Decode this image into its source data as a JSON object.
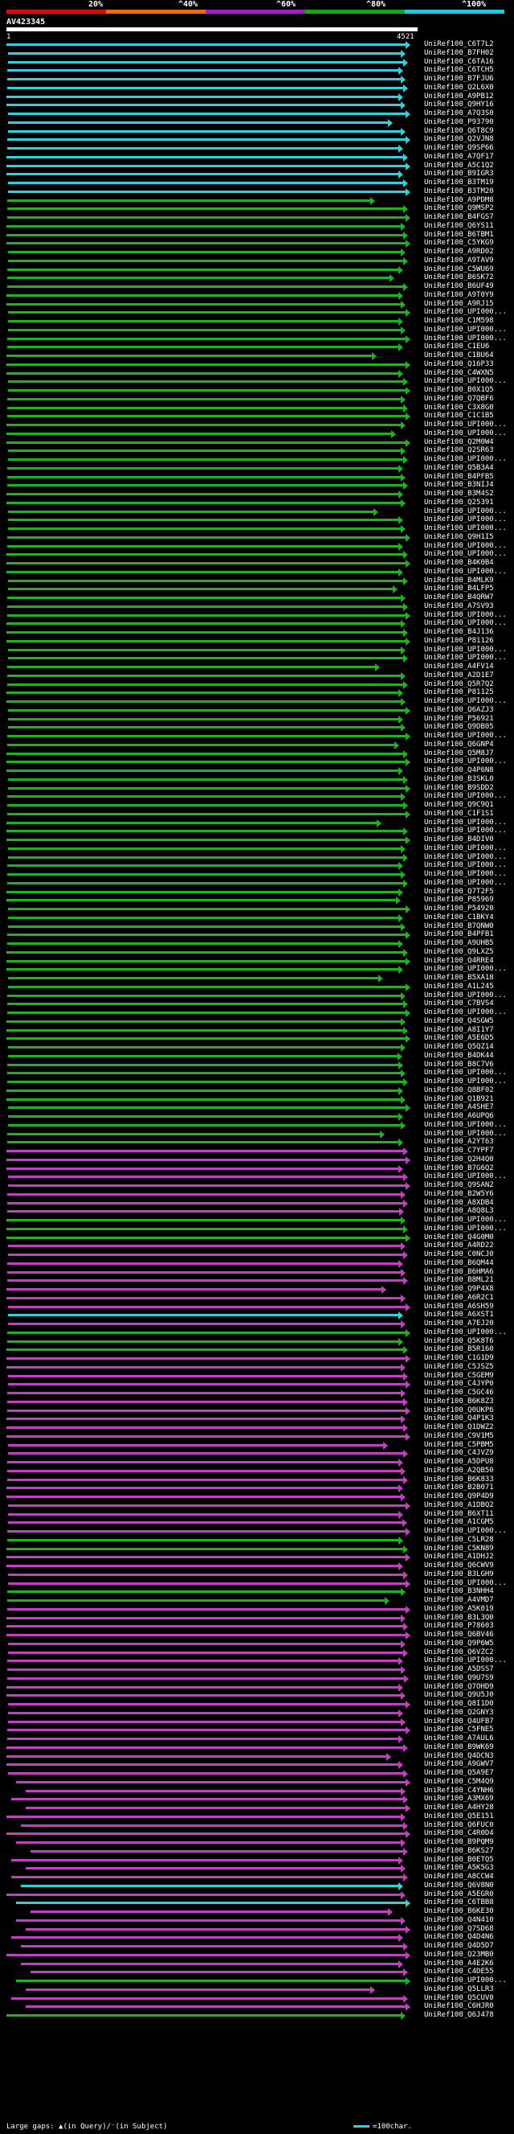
{
  "header": {
    "identity_labels": [
      "20%",
      "^40%",
      "^60%",
      "^80%",
      "^100%"
    ],
    "identity_colors": [
      "#d01010",
      "#e07010",
      "#a020c0",
      "#20a020",
      "#20c8d8"
    ],
    "query_name": "AV423345",
    "coord_start": "1",
    "coord_end": "4521"
  },
  "colors": {
    "cyan": "#2fd0e0",
    "green": "#20b020",
    "magenta": "#c040c0"
  },
  "hits": [
    {
      "label": "UniRef100_C6T7L2",
      "c": "cyan"
    },
    {
      "label": "UniRef100_B7FH02",
      "c": "cyan"
    },
    {
      "label": "UniRef100_C6TA16",
      "c": "cyan"
    },
    {
      "label": "UniRef100_C6TCH5",
      "c": "cyan"
    },
    {
      "label": "UniRef100_B7FJU6",
      "c": "cyan"
    },
    {
      "label": "UniRef100_Q2L6X0",
      "c": "cyan"
    },
    {
      "label": "UniRef100_A9PB12",
      "c": "cyan"
    },
    {
      "label": "UniRef100_Q9HY16",
      "c": "cyan"
    },
    {
      "label": "UniRef100_A7Q3S0",
      "c": "cyan"
    },
    {
      "label": "UniRef100_P93790",
      "c": "cyan"
    },
    {
      "label": "UniRef100_Q6T8C9",
      "c": "cyan"
    },
    {
      "label": "UniRef100_Q2VJN8",
      "c": "cyan"
    },
    {
      "label": "UniRef100_Q9SP66",
      "c": "cyan"
    },
    {
      "label": "UniRef100_A7QF17",
      "c": "cyan"
    },
    {
      "label": "UniRef100_A5C1Q2",
      "c": "cyan"
    },
    {
      "label": "UniRef100_B9IGR3",
      "c": "cyan"
    },
    {
      "label": "UniRef100_B3TM19",
      "c": "cyan"
    },
    {
      "label": "UniRef100_B3TM20",
      "c": "cyan"
    },
    {
      "label": "UniRef100_A9PDM8",
      "c": "green"
    },
    {
      "label": "UniRef100_Q9MSP2",
      "c": "green"
    },
    {
      "label": "UniRef100_B4FGS7",
      "c": "green"
    },
    {
      "label": "UniRef100_Q6YS11",
      "c": "green"
    },
    {
      "label": "UniRef100_B6TBM1",
      "c": "green"
    },
    {
      "label": "UniRef100_C5YKG9",
      "c": "green"
    },
    {
      "label": "UniRef100_A9RD02",
      "c": "green"
    },
    {
      "label": "UniRef100_A9TAV9",
      "c": "green"
    },
    {
      "label": "UniRef100_C5WU69",
      "c": "green"
    },
    {
      "label": "UniRef100_B6SK72",
      "c": "green"
    },
    {
      "label": "UniRef100_B6UF49",
      "c": "green"
    },
    {
      "label": "UniRef100_A9T0Y9",
      "c": "green"
    },
    {
      "label": "UniRef100_A9RJ15",
      "c": "green"
    },
    {
      "label": "UniRef100_UPI000...",
      "c": "green"
    },
    {
      "label": "UniRef100_C1M598",
      "c": "green"
    },
    {
      "label": "UniRef100_UPI000...",
      "c": "green"
    },
    {
      "label": "UniRef100_UPI000...",
      "c": "green"
    },
    {
      "label": "UniRef100_C1EU6",
      "c": "green"
    },
    {
      "label": "UniRef100_C1BU64",
      "c": "green"
    },
    {
      "label": "UniRef100_Q16P33",
      "c": "green"
    },
    {
      "label": "UniRef100_C4WXN5",
      "c": "green"
    },
    {
      "label": "UniRef100_UPI000...",
      "c": "green"
    },
    {
      "label": "UniRef100_B0X1Q5",
      "c": "green"
    },
    {
      "label": "UniRef100_Q7QBF6",
      "c": "green"
    },
    {
      "label": "UniRef100_C3X8G0",
      "c": "green"
    },
    {
      "label": "UniRef100_C1C1B5",
      "c": "green"
    },
    {
      "label": "UniRef100_UPI000...",
      "c": "green"
    },
    {
      "label": "UniRef100_UPI000...",
      "c": "green"
    },
    {
      "label": "UniRef100_Q2M0W4",
      "c": "green"
    },
    {
      "label": "UniRef100_Q2SR63",
      "c": "green"
    },
    {
      "label": "UniRef100_UPI000...",
      "c": "green"
    },
    {
      "label": "UniRef100_Q5B3A4",
      "c": "green"
    },
    {
      "label": "UniRef100_B4PFB5",
      "c": "green"
    },
    {
      "label": "UniRef100_B3NIJ4",
      "c": "green"
    },
    {
      "label": "UniRef100_B3M4S2",
      "c": "green"
    },
    {
      "label": "UniRef100_Q25391",
      "c": "green"
    },
    {
      "label": "UniRef100_UPI000...",
      "c": "green"
    },
    {
      "label": "UniRef100_UPI000...",
      "c": "green"
    },
    {
      "label": "UniRef100_UPI000...",
      "c": "green"
    },
    {
      "label": "UniRef100_Q9H1I5",
      "c": "green"
    },
    {
      "label": "UniRef100_UPI000...",
      "c": "green"
    },
    {
      "label": "UniRef100_UPI000...",
      "c": "green"
    },
    {
      "label": "UniRef100_B4K0B4",
      "c": "green"
    },
    {
      "label": "UniRef100_UPI000...",
      "c": "green"
    },
    {
      "label": "UniRef100_B4MLK9",
      "c": "green"
    },
    {
      "label": "UniRef100_B4LFP5",
      "c": "green"
    },
    {
      "label": "UniRef100_B4QRW7",
      "c": "green"
    },
    {
      "label": "UniRef100_A7SV93",
      "c": "green"
    },
    {
      "label": "UniRef100_UPI000...",
      "c": "green"
    },
    {
      "label": "UniRef100_UPI000...",
      "c": "green"
    },
    {
      "label": "UniRef100_B4J136",
      "c": "green"
    },
    {
      "label": "UniRef100_P81126",
      "c": "green"
    },
    {
      "label": "UniRef100_UPI000...",
      "c": "green"
    },
    {
      "label": "UniRef100_UPI000...",
      "c": "green"
    },
    {
      "label": "UniRef100_A4FV14",
      "c": "green"
    },
    {
      "label": "UniRef100_A2D1E7",
      "c": "green"
    },
    {
      "label": "UniRef100_Q5R7Q2",
      "c": "green"
    },
    {
      "label": "UniRef100_P81125",
      "c": "green"
    },
    {
      "label": "UniRef100_UPI000...",
      "c": "green"
    },
    {
      "label": "UniRef100_Q6AZJ3",
      "c": "green"
    },
    {
      "label": "UniRef100_P56921",
      "c": "green"
    },
    {
      "label": "UniRef100_Q9DB05",
      "c": "green"
    },
    {
      "label": "UniRef100_UPI000...",
      "c": "green"
    },
    {
      "label": "UniRef100_Q6GNP4",
      "c": "green"
    },
    {
      "label": "UniRef100_Q5M8J7",
      "c": "green"
    },
    {
      "label": "UniRef100_UPI000...",
      "c": "green"
    },
    {
      "label": "UniRef100_Q4P6N8",
      "c": "green"
    },
    {
      "label": "UniRef100_B3SKL0",
      "c": "green"
    },
    {
      "label": "UniRef100_B9SDD2",
      "c": "green"
    },
    {
      "label": "UniRef100_UPI000...",
      "c": "green"
    },
    {
      "label": "UniRef100_Q9C9Q1",
      "c": "green"
    },
    {
      "label": "UniRef100_C1F1S1",
      "c": "green"
    },
    {
      "label": "UniRef100_UPI000...",
      "c": "green"
    },
    {
      "label": "UniRef100_UPI000...",
      "c": "green"
    },
    {
      "label": "UniRef100_B4DIV0",
      "c": "green"
    },
    {
      "label": "UniRef100_UPI000...",
      "c": "green"
    },
    {
      "label": "UniRef100_UPI000...",
      "c": "green"
    },
    {
      "label": "UniRef100_UPI000...",
      "c": "green"
    },
    {
      "label": "UniRef100_UPI000...",
      "c": "green"
    },
    {
      "label": "UniRef100_UPI000...",
      "c": "green"
    },
    {
      "label": "UniRef100_Q7T2F5",
      "c": "green"
    },
    {
      "label": "UniRef100_P85969",
      "c": "green"
    },
    {
      "label": "UniRef100_P54920",
      "c": "green"
    },
    {
      "label": "UniRef100_C1BKY4",
      "c": "green"
    },
    {
      "label": "UniRef100_B7QNW0",
      "c": "green"
    },
    {
      "label": "UniRef100_B4PFB1",
      "c": "green"
    },
    {
      "label": "UniRef100_A9UHB5",
      "c": "green"
    },
    {
      "label": "UniRef100_Q9LXZ5",
      "c": "green"
    },
    {
      "label": "UniRef100_Q4RRE4",
      "c": "green"
    },
    {
      "label": "UniRef100_UPI000...",
      "c": "green"
    },
    {
      "label": "UniRef100_B5XA18",
      "c": "green"
    },
    {
      "label": "UniRef100_A1L245",
      "c": "green"
    },
    {
      "label": "UniRef100_UPI000...",
      "c": "green"
    },
    {
      "label": "UniRef100_C7BVS4",
      "c": "green"
    },
    {
      "label": "UniRef100_UPI000...",
      "c": "green"
    },
    {
      "label": "UniRef100_Q4SGW5",
      "c": "green"
    },
    {
      "label": "UniRef100_A8I1Y7",
      "c": "green"
    },
    {
      "label": "UniRef100_A5E6D5",
      "c": "green"
    },
    {
      "label": "UniRef100_Q5QZ14",
      "c": "green"
    },
    {
      "label": "UniRef100_B4DK44",
      "c": "green"
    },
    {
      "label": "UniRef100_B8C7V6",
      "c": "green"
    },
    {
      "label": "UniRef100_UPI000...",
      "c": "green"
    },
    {
      "label": "UniRef100_UPI000...",
      "c": "green"
    },
    {
      "label": "UniRef100_Q8BF02",
      "c": "green"
    },
    {
      "label": "UniRef100_Q1B921",
      "c": "green"
    },
    {
      "label": "UniRef100_A4SHE7",
      "c": "green"
    },
    {
      "label": "UniRef100_A6UPQ6",
      "c": "green"
    },
    {
      "label": "UniRef100_UPI000...",
      "c": "green"
    },
    {
      "label": "UniRef100_UPI000...",
      "c": "green"
    },
    {
      "label": "UniRef100_A2YT63",
      "c": "green"
    },
    {
      "label": "UniRef100_C7YPF7",
      "c": "magenta"
    },
    {
      "label": "UniRef100_Q2H4Q0",
      "c": "magenta"
    },
    {
      "label": "UniRef100_B7G6Q2",
      "c": "magenta"
    },
    {
      "label": "UniRef100_UPI000...",
      "c": "magenta"
    },
    {
      "label": "UniRef100_Q9SAN2",
      "c": "magenta"
    },
    {
      "label": "UniRef100_B2W5Y6",
      "c": "magenta"
    },
    {
      "label": "UniRef100_A8XDB4",
      "c": "magenta"
    },
    {
      "label": "UniRef100_A8Q8L3",
      "c": "magenta"
    },
    {
      "label": "UniRef100_UPI000...",
      "c": "green"
    },
    {
      "label": "UniRef100_UPI000...",
      "c": "green"
    },
    {
      "label": "UniRef100_Q4G0M0",
      "c": "green"
    },
    {
      "label": "UniRef100_A4RD22",
      "c": "magenta"
    },
    {
      "label": "UniRef100_C0NCJ0",
      "c": "magenta"
    },
    {
      "label": "UniRef100_B6QM44",
      "c": "magenta"
    },
    {
      "label": "UniRef100_B6HMA6",
      "c": "magenta"
    },
    {
      "label": "UniRef100_B8ML21",
      "c": "magenta"
    },
    {
      "label": "UniRef100_Q9P4X8",
      "c": "magenta"
    },
    {
      "label": "UniRef100_A6R2C1",
      "c": "magenta"
    },
    {
      "label": "UniRef100_A6SH59",
      "c": "magenta"
    },
    {
      "label": "UniRef100_A6XST1",
      "c": "cyan"
    },
    {
      "label": "UniRef100_A7EJ20",
      "c": "magenta"
    },
    {
      "label": "UniRef100_UPI000...",
      "c": "green"
    },
    {
      "label": "UniRef100_Q5K8T6",
      "c": "green"
    },
    {
      "label": "UniRef100_B5R160",
      "c": "green"
    },
    {
      "label": "UniRef100_C1G1D9",
      "c": "magenta"
    },
    {
      "label": "UniRef100_C5JSZ5",
      "c": "magenta"
    },
    {
      "label": "UniRef100_C5GEM9",
      "c": "magenta"
    },
    {
      "label": "UniRef100_C4JYP0",
      "c": "magenta"
    },
    {
      "label": "UniRef100_C5GC46",
      "c": "magenta"
    },
    {
      "label": "UniRef100_B6K8Z3",
      "c": "magenta"
    },
    {
      "label": "UniRef100_Q0UKP6",
      "c": "magenta"
    },
    {
      "label": "UniRef100_Q4P1K3",
      "c": "magenta"
    },
    {
      "label": "UniRef100_Q1DWZ2",
      "c": "magenta"
    },
    {
      "label": "UniRef100_C9V1M5",
      "c": "magenta"
    },
    {
      "label": "UniRef100_C5PBM5",
      "c": "magenta"
    },
    {
      "label": "UniRef100_C4JVZ9",
      "c": "magenta"
    },
    {
      "label": "UniRef100_A5DPU8",
      "c": "magenta"
    },
    {
      "label": "UniRef100_A2QB50",
      "c": "magenta"
    },
    {
      "label": "UniRef100_B6K833",
      "c": "magenta"
    },
    {
      "label": "UniRef100_B2B071",
      "c": "magenta"
    },
    {
      "label": "UniRef100_Q9P4D9",
      "c": "magenta"
    },
    {
      "label": "UniRef100_A1DBQ2",
      "c": "magenta"
    },
    {
      "label": "UniRef100_B6XT11",
      "c": "magenta"
    },
    {
      "label": "UniRef100_A1CGM5",
      "c": "magenta"
    },
    {
      "label": "UniRef100_UPI000...",
      "c": "magenta"
    },
    {
      "label": "UniRef100_C5LR28",
      "c": "green"
    },
    {
      "label": "UniRef100_C5KN89",
      "c": "green"
    },
    {
      "label": "UniRef100_A1DHJ2",
      "c": "magenta"
    },
    {
      "label": "UniRef100_Q6CWV9",
      "c": "magenta"
    },
    {
      "label": "UniRef100_B3LGH9",
      "c": "magenta"
    },
    {
      "label": "UniRef100_UPI000...",
      "c": "magenta"
    },
    {
      "label": "UniRef100_B3NHH4",
      "c": "green"
    },
    {
      "label": "UniRef100_A4VMD7",
      "c": "green"
    },
    {
      "label": "UniRef100_A5K019",
      "c": "magenta"
    },
    {
      "label": "UniRef100_B3L3Q0",
      "c": "magenta"
    },
    {
      "label": "UniRef100_P78603",
      "c": "magenta"
    },
    {
      "label": "UniRef100_Q6BV46",
      "c": "magenta"
    },
    {
      "label": "UniRef100_Q9P6W5",
      "c": "magenta"
    },
    {
      "label": "UniRef100_Q6VZC2",
      "c": "magenta"
    },
    {
      "label": "UniRef100_UPI000...",
      "c": "magenta"
    },
    {
      "label": "UniRef100_A5DSS7",
      "c": "magenta"
    },
    {
      "label": "UniRef100_Q9U7S9",
      "c": "magenta"
    },
    {
      "label": "UniRef100_Q7OHD9",
      "c": "magenta"
    },
    {
      "label": "UniRef100_Q9U5J0",
      "c": "magenta"
    },
    {
      "label": "UniRef100_Q8I1D0",
      "c": "magenta"
    },
    {
      "label": "UniRef100_Q2GNY3",
      "c": "magenta"
    },
    {
      "label": "UniRef100_Q4UFB7",
      "c": "magenta"
    },
    {
      "label": "UniRef100_C5FNE5",
      "c": "magenta"
    },
    {
      "label": "UniRef100_A7AUL6",
      "c": "magenta"
    },
    {
      "label": "UniRef100_B9WK69",
      "c": "magenta"
    },
    {
      "label": "UniRef100_Q4DCN3",
      "c": "magenta"
    },
    {
      "label": "UniRef100_A9GWV7",
      "c": "magenta"
    },
    {
      "label": "UniRef100_Q5A9E7",
      "c": "magenta"
    },
    {
      "label": "UniRef100_C5M4Q9",
      "c": "magenta"
    },
    {
      "label": "UniRef100_C4YNH6",
      "c": "magenta"
    },
    {
      "label": "UniRef100_A3MX69",
      "c": "magenta"
    },
    {
      "label": "UniRef100_A4HY28",
      "c": "magenta"
    },
    {
      "label": "UniRef100_Q5E151",
      "c": "magenta"
    },
    {
      "label": "UniRef100_Q6FUC0",
      "c": "magenta"
    },
    {
      "label": "UniRef100_C4R0D4",
      "c": "magenta"
    },
    {
      "label": "UniRef100_B9PQM9",
      "c": "magenta"
    },
    {
      "label": "UniRef100_B6KS27",
      "c": "magenta"
    },
    {
      "label": "UniRef100_B0ETQ5",
      "c": "magenta"
    },
    {
      "label": "UniRef100_A5K5G3",
      "c": "magenta"
    },
    {
      "label": "UniRef100_A8CCW4",
      "c": "magenta"
    },
    {
      "label": "UniRef100_Q6V8N0",
      "c": "cyan"
    },
    {
      "label": "UniRef100_A5EGR0",
      "c": "magenta"
    },
    {
      "label": "UniRef100_C6TBB8",
      "c": "cyan"
    },
    {
      "label": "UniRef100_B6KE30",
      "c": "magenta"
    },
    {
      "label": "UniRef100_Q4N410",
      "c": "magenta"
    },
    {
      "label": "UniRef100_Q7SD68",
      "c": "magenta"
    },
    {
      "label": "UniRef100_Q4D4N6",
      "c": "magenta"
    },
    {
      "label": "UniRef100_Q4D5D7",
      "c": "magenta"
    },
    {
      "label": "UniRef100_Q23MB0",
      "c": "magenta"
    },
    {
      "label": "UniRef100_A4E2K6",
      "c": "magenta"
    },
    {
      "label": "UniRef100_C4DE55",
      "c": "magenta"
    },
    {
      "label": "UniRef100_UPI000...",
      "c": "green"
    },
    {
      "label": "UniRef100_Q5LLR3",
      "c": "magenta"
    },
    {
      "label": "UniRef100_Q5CUV0",
      "c": "magenta"
    },
    {
      "label": "UniRef100_C6HJR0",
      "c": "magenta"
    },
    {
      "label": "UniRef100_Q6J478",
      "c": "green"
    }
  ],
  "footer": {
    "gaps_text": "Large gaps: ▲(in Query)/⁻(in Subject)",
    "scale_text": "=100char."
  }
}
